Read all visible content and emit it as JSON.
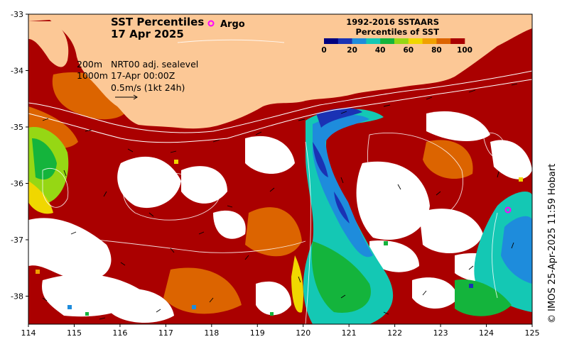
{
  "title": {
    "line1": "SST Percentiles",
    "line2": "17 Apr 2025"
  },
  "argo_label": "Argo",
  "info": {
    "depth_200": "200m",
    "depth_1000": "1000m",
    "sealevel": "NRT00 adj. sealevel",
    "time": "17-Apr 00:00Z",
    "scale": "0.5m/s (1kt 24h)"
  },
  "legend": {
    "title_line1": "1992-2016 SSTAARS",
    "title_line2": "Percentiles of SST",
    "ticks": [
      "0",
      "20",
      "40",
      "60",
      "80",
      "100"
    ],
    "colors": [
      "#00007f",
      "#1a32b4",
      "#1e8cdc",
      "#14c8b4",
      "#14b43c",
      "#96d714",
      "#f0d700",
      "#f0a000",
      "#dc6400",
      "#aa0000"
    ]
  },
  "axes": {
    "x_ticks": [
      "114",
      "115",
      "116",
      "117",
      "118",
      "119",
      "120",
      "121",
      "122",
      "123",
      "124",
      "125"
    ],
    "y_ticks": [
      "-33",
      "-34",
      "-35",
      "-36",
      "-37",
      "-38"
    ]
  },
  "credit": "© IMOS 25-Apr-2025 11:59 Hobart",
  "colors": {
    "land": "#fcc896",
    "hot": "#aa0000",
    "warm": "#dc6400",
    "cloud": "#ffffff"
  }
}
